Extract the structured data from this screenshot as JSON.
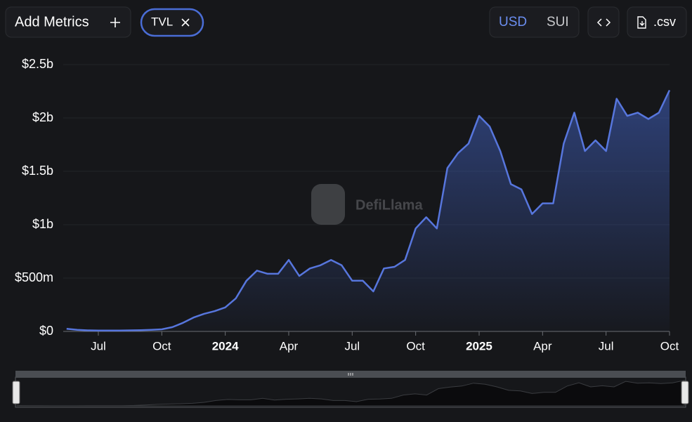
{
  "ui": {
    "add_metrics": "Add Metrics",
    "currencies": [
      "USD",
      "SUI"
    ],
    "csv": ".csv",
    "watermark": "DefiLlama"
  },
  "chart_data": {
    "type": "line",
    "categories": [
      null,
      null,
      null,
      "Jul",
      null,
      null,
      null,
      null,
      null,
      "Oct",
      null,
      null,
      null,
      null,
      null,
      "2024",
      null,
      null,
      null,
      null,
      null,
      "Apr",
      null,
      null,
      null,
      null,
      null,
      "Jul",
      null,
      null,
      null,
      null,
      null,
      "Oct",
      null,
      null,
      null,
      null,
      null,
      "2025",
      null,
      null,
      null,
      null,
      null,
      "Apr",
      null,
      null,
      null,
      null,
      null,
      "Jul",
      null,
      null,
      null,
      null,
      null,
      "Oct"
    ],
    "series": [
      {
        "name": "TVL",
        "color": "#5776dd",
        "values": [
          25000000,
          15000000,
          10000000,
          8000000,
          8000000,
          8000000,
          10000000,
          12000000,
          15000000,
          20000000,
          40000000,
          80000000,
          130000000,
          165000000,
          190000000,
          225000000,
          310000000,
          475000000,
          570000000,
          540000000,
          540000000,
          670000000,
          520000000,
          590000000,
          620000000,
          670000000,
          620000000,
          475000000,
          475000000,
          375000000,
          590000000,
          605000000,
          670000000,
          965000000,
          1070000000,
          965000000,
          1530000000,
          1670000000,
          1760000000,
          2020000000,
          1920000000,
          1690000000,
          1380000000,
          1330000000,
          1100000000,
          1200000000,
          1200000000,
          1760000000,
          2050000000,
          1690000000,
          1790000000,
          1690000000,
          2180000000,
          2020000000,
          2050000000,
          1990000000,
          2050000000,
          2260000000
        ]
      }
    ],
    "ylim": [
      0,
      2500000000
    ],
    "yticks": [
      {
        "value": 0,
        "label": "$0"
      },
      {
        "value": 500000000,
        "label": "$500m"
      },
      {
        "value": 1000000000,
        "label": "$1b"
      },
      {
        "value": 1500000000,
        "label": "$1.5b"
      },
      {
        "value": 2000000000,
        "label": "$2b"
      },
      {
        "value": 2500000000,
        "label": "$2.5b"
      }
    ],
    "grid": true
  }
}
